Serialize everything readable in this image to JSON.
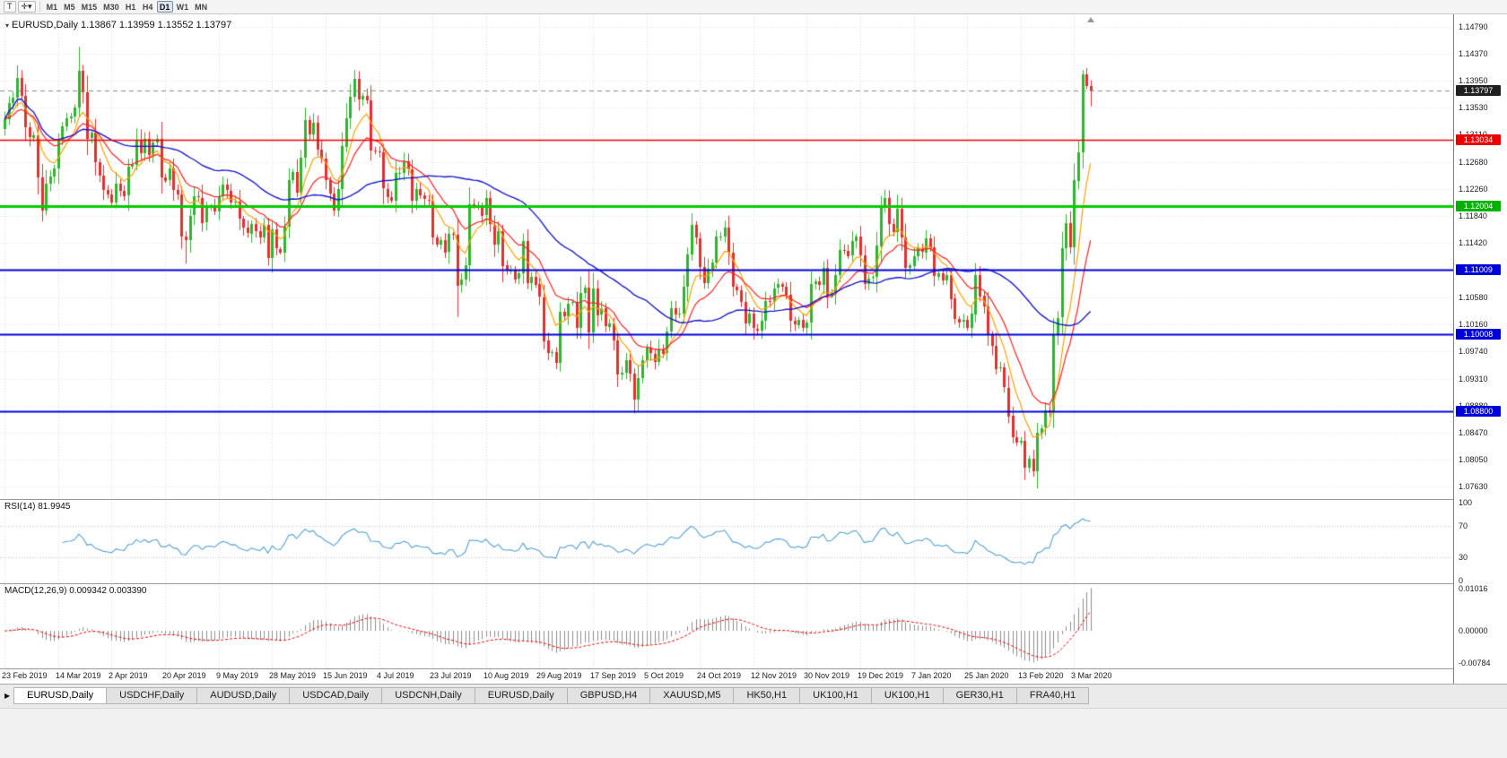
{
  "toolbar": {
    "tool_buttons": [
      {
        "label": "T"
      },
      {
        "label": "✛▾"
      }
    ],
    "timeframes": [
      "M1",
      "M5",
      "M15",
      "M30",
      "H1",
      "H4",
      "D1",
      "W1",
      "MN"
    ],
    "selected_timeframe": "D1"
  },
  "chart_header": {
    "symbol": "EURUSD,Daily",
    "ohlc": "1.13867 1.13959 1.13552 1.13797"
  },
  "price_axis": {
    "ticks": [
      "1.14790",
      "1.14370",
      "1.13950",
      "1.13530",
      "1.13110",
      "1.12680",
      "1.12260",
      "1.11840",
      "1.11420",
      "1.11000",
      "1.10580",
      "1.10160",
      "1.09740",
      "1.09310",
      "1.08880",
      "1.08470",
      "1.08050",
      "1.07630"
    ],
    "badges": [
      {
        "label": "1.13797",
        "value": 1.13797,
        "color": "#1f1f1f",
        "name": "current-price-badge"
      },
      {
        "label": "1.13034",
        "value": 1.13034,
        "color": "#ee0000",
        "name": "red-level-badge"
      },
      {
        "label": "1.12004",
        "value": 1.12004,
        "color": "#00b300",
        "name": "green-level-badge"
      },
      {
        "label": "1.11009",
        "value": 1.11009,
        "color": "#0000dd",
        "name": "blue-level-badge"
      },
      {
        "label": "1.10008",
        "value": 1.10008,
        "color": "#0000dd",
        "name": "blue-level-badge"
      },
      {
        "label": "1.08800",
        "value": 1.088,
        "color": "#0000dd",
        "name": "blue-level-badge"
      }
    ]
  },
  "levels": [
    {
      "price": 1.13034,
      "color": "#ee0000",
      "width": 1.3
    },
    {
      "price": 1.12004,
      "color": "#00cc00",
      "width": 3
    },
    {
      "price": 1.11009,
      "color": "#0000dd",
      "width": 2
    },
    {
      "price": 1.10008,
      "color": "#0000dd",
      "width": 2
    },
    {
      "price": 1.088,
      "color": "#0000dd",
      "width": 2
    }
  ],
  "current_price": {
    "value": 1.13797,
    "line_color": "#888888"
  },
  "date_axis": {
    "labels": [
      "23 Feb 2019",
      "14 Mar 2019",
      "2 Apr 2019",
      "20 Apr 2019",
      "9 May 2019",
      "28 May 2019",
      "15 Jun 2019",
      "4 Jul 2019",
      "23 Jul 2019",
      "10 Aug 2019",
      "29 Aug 2019",
      "17 Sep 2019",
      "5 Oct 2019",
      "24 Oct 2019",
      "12 Nov 2019",
      "30 Nov 2019",
      "19 Dec 2019",
      "7 Jan 2020",
      "25 Jan 2020",
      "13 Feb 2020",
      "3 Mar 2020"
    ]
  },
  "rsi_panel": {
    "label": "RSI(14) 81.9945",
    "period": 14,
    "value": "81.9945",
    "ticks": [
      {
        "value": 100,
        "label": "100"
      },
      {
        "value": 70,
        "label": "70"
      },
      {
        "value": 30,
        "label": "30"
      },
      {
        "value": 0,
        "label": "0"
      }
    ],
    "levels": [
      70,
      30
    ],
    "line_color": "#53a0d4"
  },
  "macd_panel": {
    "label": "MACD(12,26,9) 0.009342 0.003390",
    "values": "0.009342 0.003390",
    "ticks": [
      {
        "value": 0.01016,
        "label": "0.01016"
      },
      {
        "value": 0,
        "label": "0.00000"
      },
      {
        "value": -0.00784,
        "label": "-0.00784"
      }
    ],
    "range": [
      -0.0086,
      0.0108
    ],
    "histogram_color": "#8c8c8c",
    "signal_color": "#ee0000"
  },
  "tabs": {
    "items": [
      "EURUSD,Daily",
      "USDCHF,Daily",
      "AUDUSD,Daily",
      "USDCAD,Daily",
      "USDCNH,Daily",
      "EURUSD,Daily",
      "GBPUSD,H4",
      "XAUUSD,M5",
      "HK50,H1",
      "UK100,H1",
      "UK100,H1",
      "GER30,H1",
      "FRA40,H1"
    ],
    "selected_index": 0
  },
  "chart_data": {
    "type": "candlestick",
    "symbol": "EURUSD",
    "timeframe": "Daily",
    "current_bar": {
      "open": 1.13867,
      "high": 1.13959,
      "low": 1.13552,
      "close": 1.13797
    },
    "price_top": 1.14985,
    "price_bottom": 1.07434,
    "first_open": 1.132,
    "bars_per_label": 13,
    "up_color": "#2eb52e",
    "down_color": "#e03030",
    "ma": {
      "fast": {
        "period": 8,
        "type": "ema",
        "color": "#ffa200"
      },
      "mid": {
        "period": 17,
        "type": "ema",
        "color": "#ff2222"
      },
      "slow": {
        "period": 44,
        "type": "sma",
        "color": "#1a1acc"
      }
    },
    "wick_overrides": {
      "highs": {
        "3": 1.1419,
        "18": 1.1448,
        "85": 1.1412,
        "262": 1.1412
      },
      "lows": {
        "9": 1.1176,
        "44": 1.111,
        "64": 1.1107,
        "110": 1.1027,
        "154": 1.0879,
        "250": 1.0778
      }
    },
    "closes": [
      1.1335,
      1.136,
      1.1368,
      1.1399,
      1.1371,
      1.1322,
      1.1306,
      1.131,
      1.1244,
      1.1193,
      1.1235,
      1.1246,
      1.1258,
      1.1303,
      1.1324,
      1.1336,
      1.1339,
      1.1353,
      1.141,
      1.1377,
      1.1305,
      1.1314,
      1.1268,
      1.1247,
      1.1225,
      1.1218,
      1.1206,
      1.1235,
      1.1224,
      1.1216,
      1.1261,
      1.1264,
      1.1303,
      1.1282,
      1.1305,
      1.128,
      1.1299,
      1.1305,
      1.1245,
      1.124,
      1.1258,
      1.1225,
      1.1218,
      1.1153,
      1.1148,
      1.1185,
      1.1215,
      1.1213,
      1.1174,
      1.1198,
      1.12,
      1.1191,
      1.1215,
      1.1233,
      1.1224,
      1.1206,
      1.1207,
      1.118,
      1.1166,
      1.1157,
      1.1172,
      1.1161,
      1.1151,
      1.117,
      1.1119,
      1.1163,
      1.1133,
      1.1128,
      1.1168,
      1.124,
      1.1253,
      1.1221,
      1.1275,
      1.1334,
      1.1312,
      1.133,
      1.1288,
      1.1274,
      1.124,
      1.1219,
      1.1192,
      1.1226,
      1.1293,
      1.1337,
      1.137,
      1.1398,
      1.1366,
      1.1372,
      1.1365,
      1.1287,
      1.1285,
      1.1283,
      1.1227,
      1.1214,
      1.1208,
      1.1251,
      1.1252,
      1.127,
      1.1257,
      1.1208,
      1.1226,
      1.1216,
      1.121,
      1.1208,
      1.1151,
      1.114,
      1.1147,
      1.1128,
      1.1156,
      1.1155,
      1.1076,
      1.1085,
      1.1108,
      1.1203,
      1.12,
      1.1199,
      1.1185,
      1.1212,
      1.1171,
      1.114,
      1.1161,
      1.1107,
      1.1098,
      1.11,
      1.1086,
      1.1095,
      1.1145,
      1.108,
      1.109,
      1.1078,
      1.1058,
      1.099,
      1.0971,
      1.0972,
      1.0955,
      1.1035,
      1.1028,
      1.1048,
      1.105,
      1.101,
      1.1064,
      1.1073,
      1.1003,
      1.1072,
      1.103,
      1.104,
      1.1012,
      1.1017,
      1.099,
      1.0937,
      1.094,
      1.096,
      1.0939,
      1.0899,
      1.0932,
      1.096,
      1.0979,
      1.097,
      1.0957,
      1.0977,
      1.097,
      1.1004,
      1.104,
      1.103,
      1.1032,
      1.1074,
      1.1124,
      1.117,
      1.115,
      1.1105,
      1.108,
      1.1102,
      1.1112,
      1.1152,
      1.1152,
      1.1166,
      1.1127,
      1.1074,
      1.1068,
      1.105,
      1.1017,
      1.1032,
      1.1009,
      1.1006,
      1.1021,
      1.1052,
      1.1051,
      1.1072,
      1.1078,
      1.1074,
      1.1062,
      1.1021,
      1.1015,
      1.1023,
      1.101,
      1.1018,
      1.1078,
      1.1082,
      1.1077,
      1.1103,
      1.106,
      1.1065,
      1.1093,
      1.1132,
      1.113,
      1.1122,
      1.1145,
      1.1152,
      1.1123,
      1.1078,
      1.1087,
      1.1089,
      1.1138,
      1.1199,
      1.1212,
      1.1172,
      1.116,
      1.1196,
      1.1151,
      1.1103,
      1.1107,
      1.1122,
      1.1134,
      1.1128,
      1.115,
      1.1135,
      1.109,
      1.1095,
      1.1084,
      1.1093,
      1.1056,
      1.1024,
      1.1019,
      1.1022,
      1.101,
      1.1032,
      1.1093,
      1.106,
      1.1043,
      1.1,
      1.0982,
      1.0946,
      1.0948,
      1.0917,
      1.0873,
      1.084,
      1.0831,
      1.0834,
      1.0792,
      1.0806,
      1.0786,
      1.0846,
      1.0854,
      1.0881,
      1.088,
      1.0999,
      1.1026,
      1.1134,
      1.1173,
      1.1135,
      1.124,
      1.1284,
      1.1405,
      1.1387,
      1.13797
    ]
  }
}
